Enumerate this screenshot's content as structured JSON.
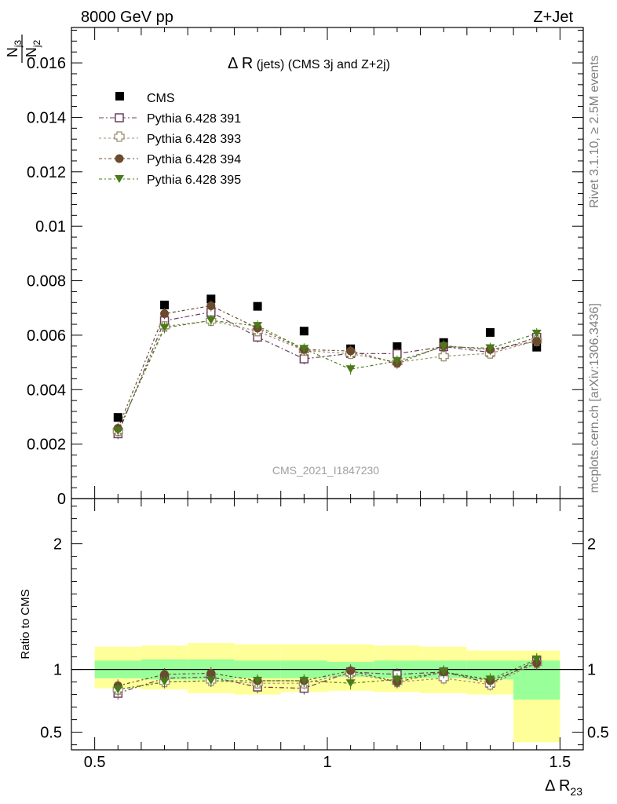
{
  "header": {
    "left": "8000 GeV pp",
    "right": "Z+Jet"
  },
  "side_text": {
    "rivet": "Rivet 3.1.10, ≥ 2.5M events",
    "mcplots": "mcplots.cern.ch [arXiv:1306.3436]"
  },
  "main_panel": {
    "title_main": "Δ R",
    "title_rest": " (jets) (CMS 3j and Z+2j)",
    "ylabel_num": "N",
    "ylabel_num_sub": "j3",
    "ylabel_den": "N",
    "ylabel_den_sub": "j2",
    "analysis_id": "CMS_2021_I1847230"
  },
  "ratio_panel": {
    "ylabel": "Ratio to CMS"
  },
  "x_axis": {
    "label_main": "Δ R",
    "label_sub": "23"
  },
  "colors": {
    "cms": "#000000",
    "p391": "#6b3f5c",
    "p393": "#9b8f6e",
    "p394": "#6b4a2e",
    "p395": "#4a7a1a",
    "band_inner": "#99ff99",
    "band_outer": "#ffff99"
  },
  "chart_data": [
    {
      "type": "scatter",
      "panel": "main",
      "xlim": [
        0.45,
        1.55
      ],
      "ylim": [
        0,
        0.0173
      ],
      "x_ticks": [
        "0.5",
        "1",
        "1.5"
      ],
      "y_ticks": [
        "0",
        "0.002",
        "0.004",
        "0.006",
        "0.008",
        "0.01",
        "0.012",
        "0.014",
        "0.016"
      ],
      "x": [
        0.55,
        0.65,
        0.75,
        0.85,
        0.95,
        1.05,
        1.15,
        1.25,
        1.35,
        1.45
      ],
      "legend_position": "top-left",
      "series": [
        {
          "name": "CMS",
          "marker": "square-filled",
          "values": [
            0.00298,
            0.00711,
            0.00733,
            0.00706,
            0.00615,
            0.0055,
            0.00558,
            0.00573,
            0.0061,
            0.00556
          ]
        },
        {
          "name": "Pythia 6.428 391",
          "marker": "square-open",
          "values": [
            0.00238,
            0.00653,
            0.00685,
            0.00593,
            0.00513,
            0.00533,
            0.00532,
            0.00558,
            0.00537,
            0.00592
          ]
        },
        {
          "name": "Pythia 6.428 393",
          "marker": "cross-open",
          "values": [
            0.00249,
            0.00632,
            0.00653,
            0.00615,
            0.00544,
            0.00532,
            0.005,
            0.00523,
            0.00533,
            0.0058
          ]
        },
        {
          "name": "Pythia 6.428 394",
          "marker": "circle-filled",
          "values": [
            0.00258,
            0.00679,
            0.00708,
            0.00626,
            0.00547,
            0.00542,
            0.00497,
            0.00561,
            0.00547,
            0.00578
          ]
        },
        {
          "name": "Pythia 6.428 395",
          "marker": "triangle-down-filled",
          "values": [
            0.00248,
            0.00627,
            0.00654,
            0.00634,
            0.0055,
            0.00475,
            0.00505,
            0.00558,
            0.00552,
            0.00606
          ]
        }
      ]
    },
    {
      "type": "scatter",
      "panel": "ratio",
      "xlim": [
        0.45,
        1.55
      ],
      "ylim": [
        0.36,
        2.36
      ],
      "y_ticks": [
        "0.5",
        "1",
        "2"
      ],
      "x": [
        0.55,
        0.65,
        0.75,
        0.85,
        0.95,
        1.05,
        1.15,
        1.25,
        1.35,
        1.45
      ],
      "reference_line": 1,
      "bins": [
        [
          0.5,
          0.6
        ],
        [
          0.6,
          0.7
        ],
        [
          0.7,
          0.8
        ],
        [
          0.8,
          0.9
        ],
        [
          0.9,
          1.0
        ],
        [
          1.0,
          1.1
        ],
        [
          1.1,
          1.2
        ],
        [
          1.2,
          1.3
        ],
        [
          1.3,
          1.4
        ],
        [
          1.4,
          1.5
        ]
      ],
      "band_inner": [
        [
          0.93,
          1.07
        ],
        [
          0.92,
          1.08
        ],
        [
          0.92,
          1.08
        ],
        [
          0.93,
          1.07
        ],
        [
          0.93,
          1.07
        ],
        [
          0.94,
          1.06
        ],
        [
          0.93,
          1.07
        ],
        [
          0.93,
          1.07
        ],
        [
          0.92,
          1.07
        ],
        [
          0.76,
          1.07
        ]
      ],
      "band_outer": [
        [
          0.85,
          1.18
        ],
        [
          0.84,
          1.19
        ],
        [
          0.81,
          1.21
        ],
        [
          0.8,
          1.2
        ],
        [
          0.82,
          1.2
        ],
        [
          0.83,
          1.2
        ],
        [
          0.82,
          1.19
        ],
        [
          0.81,
          1.18
        ],
        [
          0.8,
          1.15
        ],
        [
          0.42,
          1.15
        ]
      ],
      "series": [
        {
          "name": "Pythia 6.428 391",
          "values": [
            0.81,
            0.93,
            0.94,
            0.86,
            0.85,
            0.98,
            0.96,
            0.98,
            0.89,
            1.07
          ]
        },
        {
          "name": "Pythia 6.428 393",
          "values": [
            0.84,
            0.9,
            0.91,
            0.89,
            0.89,
            0.97,
            0.9,
            0.93,
            0.88,
            1.05
          ]
        },
        {
          "name": "Pythia 6.428 394",
          "values": [
            0.87,
            0.96,
            0.97,
            0.91,
            0.91,
            0.99,
            0.9,
            0.98,
            0.91,
            1.05
          ]
        },
        {
          "name": "Pythia 6.428 395",
          "values": [
            0.84,
            0.9,
            0.91,
            0.91,
            0.91,
            0.89,
            0.92,
            0.98,
            0.92,
            1.08
          ]
        }
      ]
    }
  ]
}
